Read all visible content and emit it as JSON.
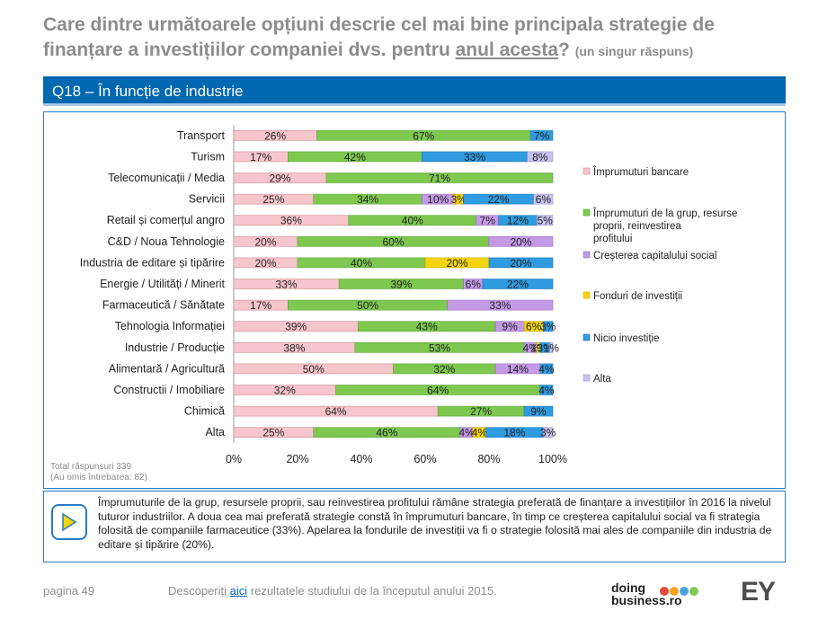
{
  "title": {
    "line1": "Care dintre următoarele opțiuni descrie cel mai bine principala strategie de",
    "line2_start": "finanțare a investițiilor companiei dvs. pentru ",
    "line2_underlined": "anul acesta",
    "line2_end": "?",
    "note": "(un singur răspuns)"
  },
  "section_title": "Q18 – În funcție de industrie",
  "total": {
    "line1": "Total răspunsuri 339",
    "line2": "(Au omis întrebarea: 82)"
  },
  "summary": "Împrumuturile de la grup, resursele proprii, sau reinvestirea profitului rămâne strategia preferată de finanțare a investițiilor în 2016 la nivelul tuturor industriilor. A doua cea mai preferată strategie constă în împrumuturi bancare, în timp ce creșterea capitalului social va fi strategia folosită de companiile farmaceutice (33%). Apelarea la fondurile de investiții va fi o strategie folosită mai ales de companiile din industria de editare și tipărire (20%).",
  "footer": {
    "page": "pagina 49",
    "text_before": "Descoperiți ",
    "link": "aici",
    "text_after": " rezultatele studiului de la începutul anului 2015.",
    "logo_line1": "doing",
    "logo_line2": "business.ro",
    "logo_ey": "EY"
  },
  "colors": {
    "bank": "#f7c6cc",
    "group": "#7ec850",
    "capital": "#c49ae6",
    "funds": "#f4d40c",
    "none": "#2f9be0",
    "other": "#c9c2ef",
    "accent": "#0067b1"
  },
  "chart_data": {
    "type": "bar",
    "orientation": "horizontal",
    "stacked": "100%",
    "categories": [
      "Transport",
      "Turism",
      "Telecomunicații / Media",
      "Servicii",
      "Retail și comerțul angro",
      "C&D / Noua Tehnologie",
      "Industria de editare și tipărire",
      "Energie / Utilități / Minerit",
      "Farmaceutică / Sănătate",
      "Tehnologia Informației",
      "Industrie / Producție",
      "Alimentară / Agricultură",
      "Constructii / Imobiliare",
      "Chimică",
      "Alta"
    ],
    "series": [
      {
        "name": "Împrumuturi bancare",
        "values": [
          26,
          17,
          29,
          25,
          36,
          20,
          20,
          33,
          17,
          39,
          38,
          50,
          32,
          64,
          25
        ]
      },
      {
        "name": "Împrumuturi de la grup, resurse proprii, reinvestirea profitului",
        "values": [
          67,
          42,
          71,
          34,
          40,
          60,
          40,
          39,
          50,
          43,
          53,
          32,
          64,
          27,
          46
        ]
      },
      {
        "name": "Creșterea capitalului social",
        "values": [
          0,
          0,
          0,
          10,
          7,
          20,
          0,
          6,
          33,
          9,
          4,
          14,
          0,
          0,
          4
        ]
      },
      {
        "name": "Fonduri de investiții",
        "values": [
          0,
          0,
          0,
          3,
          0,
          0,
          20,
          0,
          0,
          6,
          1,
          0,
          0,
          0,
          4
        ]
      },
      {
        "name": "Nicio investiție",
        "values": [
          7,
          33,
          0,
          22,
          12,
          0,
          20,
          22,
          0,
          3,
          3,
          4,
          4,
          9,
          18
        ]
      },
      {
        "name": "Alta",
        "values": [
          0,
          8,
          0,
          6,
          5,
          0,
          0,
          0,
          0,
          0,
          1,
          0,
          0,
          0,
          3
        ]
      }
    ],
    "labels": [
      [
        "26%",
        "67%",
        "",
        "",
        "7%",
        ""
      ],
      [
        "17%",
        "42%",
        "",
        "",
        "33%",
        "8%"
      ],
      [
        "29%",
        "71%",
        "",
        "",
        "",
        ""
      ],
      [
        "25%",
        "34%",
        "10%",
        "3%",
        "22%",
        "6%"
      ],
      [
        "36%",
        "40%",
        "7%",
        "",
        "12%",
        "5%"
      ],
      [
        "20%",
        "60%",
        "20%",
        "",
        "",
        ""
      ],
      [
        "20%",
        "40%",
        "",
        "20%",
        "20%",
        ""
      ],
      [
        "33%",
        "39%",
        "6%",
        "",
        "22%",
        ""
      ],
      [
        "17%",
        "50%",
        "33%",
        "",
        "",
        ""
      ],
      [
        "39%",
        "43%",
        "9%",
        "6%",
        "3%",
        ""
      ],
      [
        "38%",
        "53%",
        "4%",
        "1%",
        "3%",
        "1%"
      ],
      [
        "50%",
        "32%",
        "14%",
        "",
        "4%",
        ""
      ],
      [
        "32%",
        "64%",
        "",
        "",
        "4%",
        ""
      ],
      [
        "64%",
        "27%",
        "",
        "",
        "9%",
        ""
      ],
      [
        "25%",
        "46%",
        "4%",
        "4%",
        "18%",
        "3%"
      ]
    ],
    "xticks": [
      "0%",
      "20%",
      "40%",
      "60%",
      "80%",
      "100%"
    ],
    "xlim": [
      0,
      100
    ],
    "legend_position": "right"
  }
}
